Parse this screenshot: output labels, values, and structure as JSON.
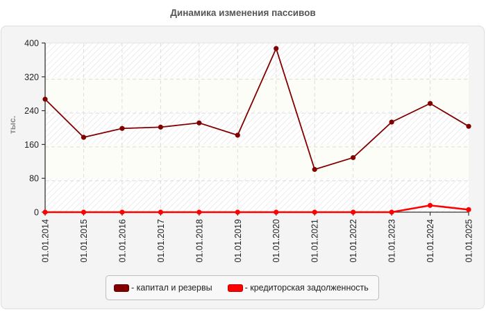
{
  "title": "Динамика изменения пассивов",
  "y_axis_label": "тыс.",
  "legend": [
    {
      "label": "- капитал и резервы",
      "color": "#800000"
    },
    {
      "label": "- кредиторская задолженность",
      "color": "#ff0000"
    }
  ],
  "chart_data": {
    "type": "line",
    "title": "Динамика изменения пассивов",
    "xlabel": "",
    "ylabel": "тыс.",
    "ylim": [
      0,
      400
    ],
    "yticks": [
      0,
      80,
      160,
      240,
      320,
      400
    ],
    "grid": true,
    "legend_position": "bottom",
    "categories": [
      "01.01.2014",
      "01.01.2015",
      "01.01.2016",
      "01.01.2017",
      "01.01.2018",
      "01.01.2019",
      "01.01.2020",
      "01.01.2021",
      "01.01.2022",
      "01.01.2023",
      "01.01.2024",
      "01.01.2025"
    ],
    "series": [
      {
        "name": "капитал и резервы",
        "color": "#800000",
        "values": [
          267,
          177,
          198,
          201,
          211,
          182,
          387,
          101,
          129,
          213,
          257,
          203
        ]
      },
      {
        "name": "кредиторская задолженность",
        "color": "#ff0000",
        "values": [
          0,
          0,
          0,
          0,
          0,
          0,
          0,
          0,
          0,
          0,
          16,
          6
        ]
      }
    ]
  }
}
